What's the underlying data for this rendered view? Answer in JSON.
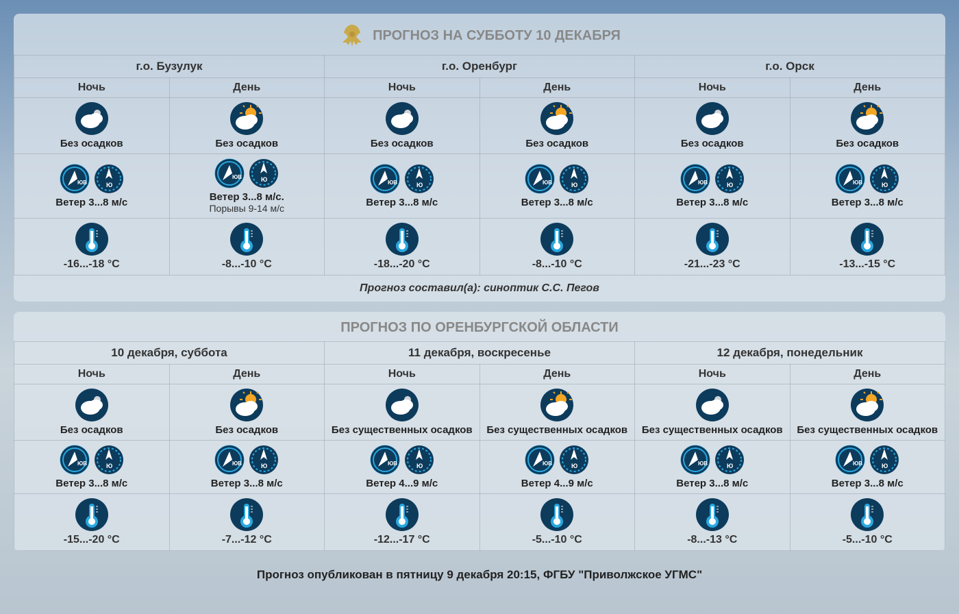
{
  "colors": {
    "icon_bg_dark": "#0d3b5c",
    "icon_accent": "#2aa8e0",
    "icon_light": "#ffffff",
    "sun": "#f5a623",
    "text": "#222222",
    "title_grey": "#888888"
  },
  "daypart_labels": {
    "night": "Ночь",
    "day": "День"
  },
  "panel1": {
    "title": "ПРОГНОЗ НА СУББОТУ 10 ДЕКАБРЯ",
    "cities": [
      "г.о. Бузулук",
      "г.о. Оренбург",
      "г.о. Орск"
    ],
    "author": "Прогноз составил(а): синоптик С.С. Пегов",
    "cells": [
      {
        "precip": "Без осадков",
        "wind": "Ветер 3...8 м/с",
        "gust": "",
        "temp": "-16...-18 °C",
        "sky": "night"
      },
      {
        "precip": "Без осадков",
        "wind": "Ветер 3...8 м/с.",
        "gust": "Порывы 9-14 м/с",
        "temp": "-8...-10 °C",
        "sky": "day"
      },
      {
        "precip": "Без осадков",
        "wind": "Ветер 3...8 м/с",
        "gust": "",
        "temp": "-18...-20 °C",
        "sky": "night"
      },
      {
        "precip": "Без осадков",
        "wind": "Ветер 3...8 м/с",
        "gust": "",
        "temp": "-8...-10 °C",
        "sky": "day"
      },
      {
        "precip": "Без осадков",
        "wind": "Ветер 3...8 м/с",
        "gust": "",
        "temp": "-21...-23 °C",
        "sky": "night"
      },
      {
        "precip": "Без осадков",
        "wind": "Ветер 3...8 м/с",
        "gust": "",
        "temp": "-13...-15 °C",
        "sky": "day"
      }
    ]
  },
  "panel2": {
    "title": "ПРОГНОЗ ПО ОРЕНБУРГСКОЙ ОБЛАСТИ",
    "dates": [
      "10 декабря, суббота",
      "11 декабря, воскресенье",
      "12 декабря, понедельник"
    ],
    "cells": [
      {
        "precip": "Без осадков",
        "wind": "Ветер 3...8 м/с",
        "temp": "-15...-20 °C",
        "sky": "night"
      },
      {
        "precip": "Без осадков",
        "wind": "Ветер 3...8 м/с",
        "temp": "-7...-12 °C",
        "sky": "day"
      },
      {
        "precip": "Без существенных осадков",
        "wind": "Ветер 4...9 м/с",
        "temp": "-12...-17 °C",
        "sky": "night"
      },
      {
        "precip": "Без существенных осадков",
        "wind": "Ветер 4...9 м/с",
        "temp": "-5...-10 °C",
        "sky": "day"
      },
      {
        "precip": "Без существенных осадков",
        "wind": "Ветер 3...8 м/с",
        "temp": "-8...-13 °C",
        "sky": "night"
      },
      {
        "precip": "Без существенных осадков",
        "wind": "Ветер 3...8 м/с",
        "temp": "-5...-10 °C",
        "sky": "day"
      }
    ]
  },
  "published": "Прогноз опубликован в пятницу 9 декабря 20:15, ФГБУ \"Приволжское УГМС\""
}
